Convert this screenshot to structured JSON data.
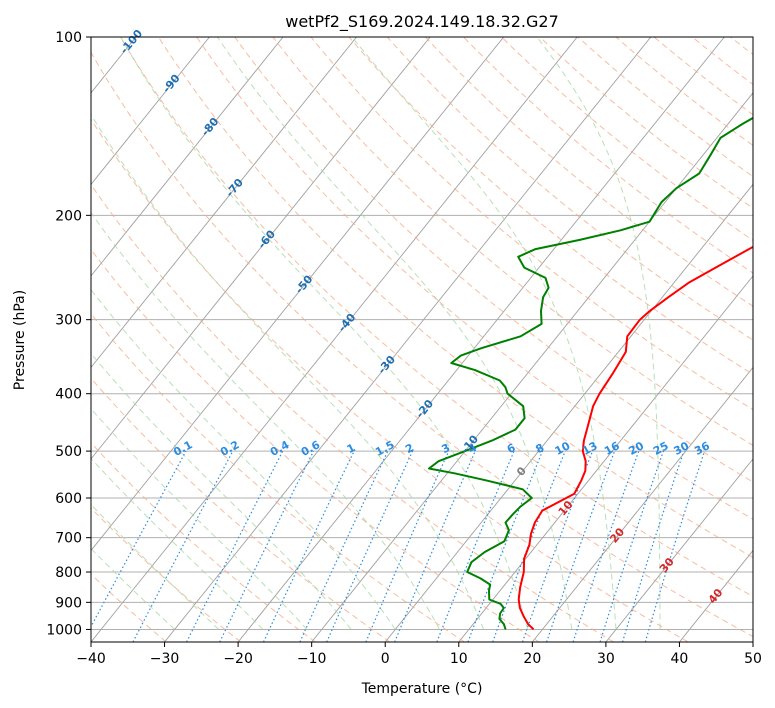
{
  "chart_data": {
    "type": "line",
    "title": "wetPf2_S169.2024.149.18.32.G27",
    "xlabel": "Temperature (°C)",
    "ylabel": "Pressure (hPa)",
    "xlim": [
      -40,
      50
    ],
    "ylim": [
      1050,
      100
    ],
    "yscale": "log",
    "x_ticks": [
      -40,
      -30,
      -20,
      -10,
      0,
      10,
      20,
      30,
      40,
      50
    ],
    "y_ticks": [
      1000,
      900,
      800,
      700,
      600,
      500,
      400,
      300,
      200,
      100
    ],
    "grid": true,
    "series": [
      {
        "color": "#ff0000",
        "points": [
          [
            18.8,
            1000
          ],
          [
            17.5,
            980
          ],
          [
            16,
            950
          ],
          [
            14.6,
            920
          ],
          [
            13.5,
            890
          ],
          [
            12.4,
            850
          ],
          [
            11.2,
            800
          ],
          [
            9.8,
            760
          ],
          [
            9,
            720
          ],
          [
            8,
            690
          ],
          [
            7.3,
            660
          ],
          [
            7,
            630
          ],
          [
            9.5,
            590
          ],
          [
            9,
            560
          ],
          [
            8.5,
            540
          ],
          [
            7.5,
            520
          ],
          [
            6,
            500
          ],
          [
            5,
            480
          ],
          [
            3.8,
            450
          ],
          [
            2.5,
            420
          ],
          [
            2,
            400
          ],
          [
            1.6,
            370
          ],
          [
            1,
            340
          ],
          [
            -0.5,
            320
          ],
          [
            -0.6,
            300
          ],
          [
            -0.2,
            290
          ],
          [
            0.8,
            275
          ],
          [
            2,
            260
          ],
          [
            4,
            245
          ],
          [
            7,
            225
          ],
          [
            9.5,
            210
          ],
          [
            11,
            200
          ],
          [
            12,
            190
          ],
          [
            13.2,
            180
          ],
          [
            14,
            170
          ],
          [
            13.8,
            160
          ],
          [
            14.8,
            150
          ],
          [
            14.9,
            140
          ],
          [
            15.8,
            130
          ],
          [
            16.5,
            120
          ],
          [
            17.5,
            110
          ],
          [
            17.8,
            105
          ],
          [
            18.4,
            100
          ]
        ]
      },
      {
        "color": "#008000",
        "points": [
          [
            15,
            1000
          ],
          [
            14.2,
            980
          ],
          [
            13,
            960
          ],
          [
            12.5,
            940
          ],
          [
            12.4,
            920
          ],
          [
            11.5,
            905
          ],
          [
            9.5,
            890
          ],
          [
            8.5,
            860
          ],
          [
            8,
            840
          ],
          [
            6,
            820
          ],
          [
            3.5,
            800
          ],
          [
            3,
            770
          ],
          [
            3.7,
            740
          ],
          [
            5.2,
            710
          ],
          [
            4.6,
            680
          ],
          [
            3.3,
            660
          ],
          [
            3.4,
            640
          ],
          [
            3.6,
            620
          ],
          [
            4.2,
            600
          ],
          [
            2,
            580
          ],
          [
            -4,
            560
          ],
          [
            -9,
            545
          ],
          [
            -13,
            535
          ],
          [
            -12.5,
            520
          ],
          [
            -10,
            500
          ],
          [
            -7.5,
            480
          ],
          [
            -5.5,
            460
          ],
          [
            -5.5,
            440
          ],
          [
            -7,
            420
          ],
          [
            -10.5,
            400
          ],
          [
            -11.5,
            390
          ],
          [
            -13,
            380
          ],
          [
            -17.5,
            365
          ],
          [
            -21.5,
            355
          ],
          [
            -21,
            345
          ],
          [
            -19,
            335
          ],
          [
            -15,
            320
          ],
          [
            -13.5,
            305
          ],
          [
            -15,
            290
          ],
          [
            -16.2,
            275
          ],
          [
            -16.5,
            265
          ],
          [
            -18,
            255
          ],
          [
            -22,
            245
          ],
          [
            -24,
            235
          ],
          [
            -22.5,
            228
          ],
          [
            -17.5,
            220
          ],
          [
            -13,
            212
          ],
          [
            -10,
            205
          ],
          [
            -10.5,
            190
          ],
          [
            -10,
            180
          ],
          [
            -8.5,
            170
          ],
          [
            -9,
            158
          ],
          [
            -9.5,
            148
          ],
          [
            -8,
            140
          ],
          [
            -6,
            132
          ],
          [
            -5.2,
            125
          ],
          [
            -4.3,
            118
          ],
          [
            -3,
            112
          ],
          [
            -1.5,
            106
          ],
          [
            0.7,
            100
          ]
        ]
      }
    ],
    "dry_adiabat_labels": [
      "-100",
      "-90",
      "-80",
      "-70",
      "-60",
      "-50",
      "-40",
      "-30",
      "-20",
      "-10",
      "0",
      "10",
      "20",
      "30",
      "40"
    ],
    "mixing_ratio_labels": [
      "0.1",
      "0.2",
      "0.4",
      "0.6",
      "1",
      "1.5",
      "2",
      "3",
      "4",
      "6",
      "8",
      "10",
      "13",
      "16",
      "20",
      "25",
      "30",
      "36"
    ],
    "colors": {
      "temperature": "#ff0000",
      "dewpoint": "#008000",
      "isotherm": "#a0a0a0",
      "isobar": "#b0b0b0",
      "dry_adiabat": "#f4a582",
      "moist_adiabat": "#a6d8a6",
      "mixing_ratio": "#2b8ce0",
      "label_cold": "#1f6fb0",
      "label_warm": "#d62728",
      "label_zero": "#808080"
    }
  }
}
